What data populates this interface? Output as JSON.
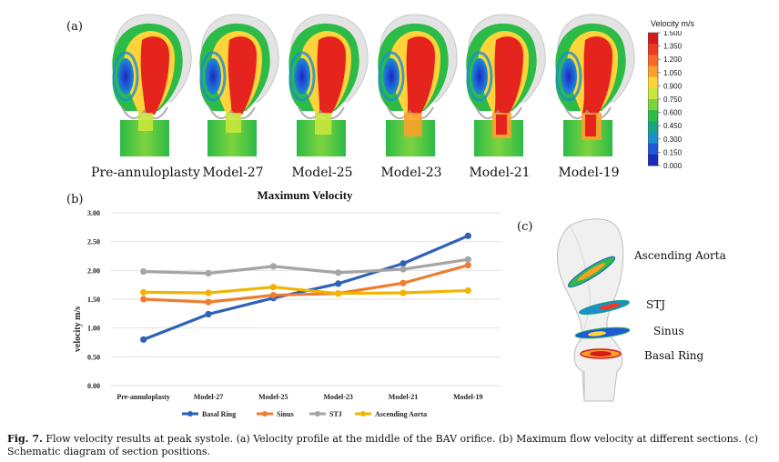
{
  "panel_a": {
    "label": "(a)",
    "models": [
      "Pre-annuloplasty",
      "Model-27",
      "Model-25",
      "Model-23",
      "Model-21",
      "Model-19"
    ],
    "colorbar": {
      "title": "Velocity m/s",
      "ticks": [
        "1.500",
        "1.350",
        "1.200",
        "1.050",
        "0.900",
        "0.750",
        "0.600",
        "0.450",
        "0.300",
        "0.150",
        "0.000"
      ],
      "colors": [
        "#d7191c",
        "#ee3a20",
        "#f86a24",
        "#fca02a",
        "#fed43a",
        "#c8e63b",
        "#7dd33e",
        "#2dbb47",
        "#14a57f",
        "#1a8fc9",
        "#1f58d8",
        "#1b2ab8"
      ]
    }
  },
  "panel_b": {
    "label": "(b)",
    "chart_data": {
      "type": "line",
      "title": "Maximum Velocity",
      "xlabel": "",
      "ylabel": "velocity m/s",
      "categories": [
        "Pre-annuloplasty",
        "Model-27",
        "Model-25",
        "Model-23",
        "Model-21",
        "Model-19"
      ],
      "ylim": [
        0,
        3
      ],
      "yticks": [
        "0.00",
        "0.50",
        "1.00",
        "1.50",
        "2.00",
        "2.50",
        "3.00"
      ],
      "series": [
        {
          "name": "Basal Ring",
          "color": "#2e62b8",
          "values": [
            0.8,
            1.24,
            1.52,
            1.77,
            2.12,
            2.6
          ]
        },
        {
          "name": "Sinus",
          "color": "#ed7d31",
          "values": [
            1.5,
            1.45,
            1.57,
            1.6,
            1.78,
            2.09
          ]
        },
        {
          "name": "STJ",
          "color": "#a5a5a5",
          "values": [
            1.98,
            1.95,
            2.07,
            1.96,
            2.02,
            2.19
          ]
        },
        {
          "name": "Ascending Aorta",
          "color": "#f2b400",
          "values": [
            1.62,
            1.61,
            1.71,
            1.6,
            1.61,
            1.65
          ]
        }
      ]
    }
  },
  "panel_c": {
    "label": "(c)",
    "sections": [
      "Ascending Aorta",
      "STJ",
      "Sinus",
      "Basal Ring"
    ]
  },
  "caption": {
    "figure": "Fig. 7.",
    "text": "Flow velocity results at peak systole. (a) Velocity profile at the middle of the BAV orifice. (b) Maximum flow velocity at different sections. (c) Schematic diagram of section positions."
  }
}
